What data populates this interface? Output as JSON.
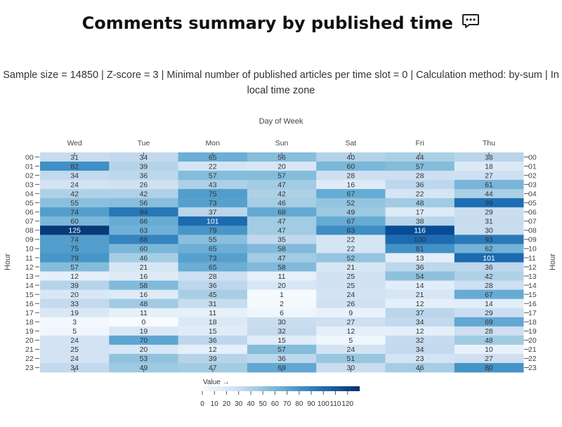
{
  "title": "Comments summary by published time",
  "title_icon": "speech-bubble-icon",
  "subtitle_line1": "Sample size = 14850 | Z-score = 3 | Minimal number of published articles per time slot = 0 | Calculation method: by-sum | In",
  "subtitle_line2": "local time zone",
  "chart_data": {
    "type": "heatmap",
    "xlabel": "Day of Week",
    "ylabel": "Hour",
    "x": [
      "Wed",
      "Tue",
      "Mon",
      "Sun",
      "Sat",
      "Fri",
      "Thu"
    ],
    "y": [
      "00",
      "01",
      "02",
      "03",
      "04",
      "05",
      "06",
      "07",
      "08",
      "09",
      "10",
      "11",
      "12",
      "13",
      "14",
      "15",
      "16",
      "17",
      "18",
      "19",
      "20",
      "21",
      "22",
      "23"
    ],
    "values": [
      [
        31,
        34,
        65,
        56,
        40,
        44,
        38
      ],
      [
        82,
        39,
        22,
        20,
        60,
        57,
        18
      ],
      [
        34,
        36,
        57,
        57,
        28,
        28,
        27
      ],
      [
        24,
        26,
        43,
        47,
        16,
        36,
        61
      ],
      [
        42,
        42,
        75,
        42,
        67,
        22,
        44
      ],
      [
        55,
        56,
        73,
        46,
        52,
        48,
        99
      ],
      [
        74,
        94,
        37,
        68,
        49,
        17,
        29
      ],
      [
        60,
        66,
        101,
        47,
        67,
        38,
        31
      ],
      [
        125,
        63,
        79,
        47,
        83,
        116,
        30
      ],
      [
        74,
        88,
        55,
        35,
        22,
        100,
        93
      ],
      [
        75,
        60,
        65,
        58,
        22,
        81,
        62
      ],
      [
        79,
        46,
        73,
        47,
        52,
        13,
        101
      ],
      [
        57,
        21,
        65,
        58,
        21,
        36,
        36
      ],
      [
        12,
        16,
        28,
        11,
        25,
        54,
        42
      ],
      [
        39,
        58,
        36,
        20,
        25,
        14,
        28
      ],
      [
        20,
        16,
        45,
        1,
        24,
        21,
        67
      ],
      [
        33,
        48,
        31,
        2,
        26,
        12,
        14
      ],
      [
        19,
        11,
        11,
        6,
        9,
        37,
        29
      ],
      [
        3,
        0,
        18,
        30,
        27,
        34,
        69
      ],
      [
        5,
        19,
        15,
        32,
        12,
        12,
        28
      ],
      [
        24,
        70,
        36,
        15,
        5,
        32,
        48
      ],
      [
        25,
        20,
        12,
        57,
        24,
        34,
        10
      ],
      [
        24,
        53,
        39,
        36,
        51,
        23,
        27
      ],
      [
        34,
        49,
        47,
        69,
        30,
        46,
        80
      ]
    ],
    "colorscale": [
      "#f7fbff",
      "#08306b"
    ],
    "zmin": 0,
    "zmax": 130,
    "colorbar": {
      "title": "Value →",
      "ticks": [
        0,
        10,
        20,
        30,
        40,
        50,
        60,
        70,
        80,
        90,
        100,
        110,
        120
      ]
    }
  }
}
